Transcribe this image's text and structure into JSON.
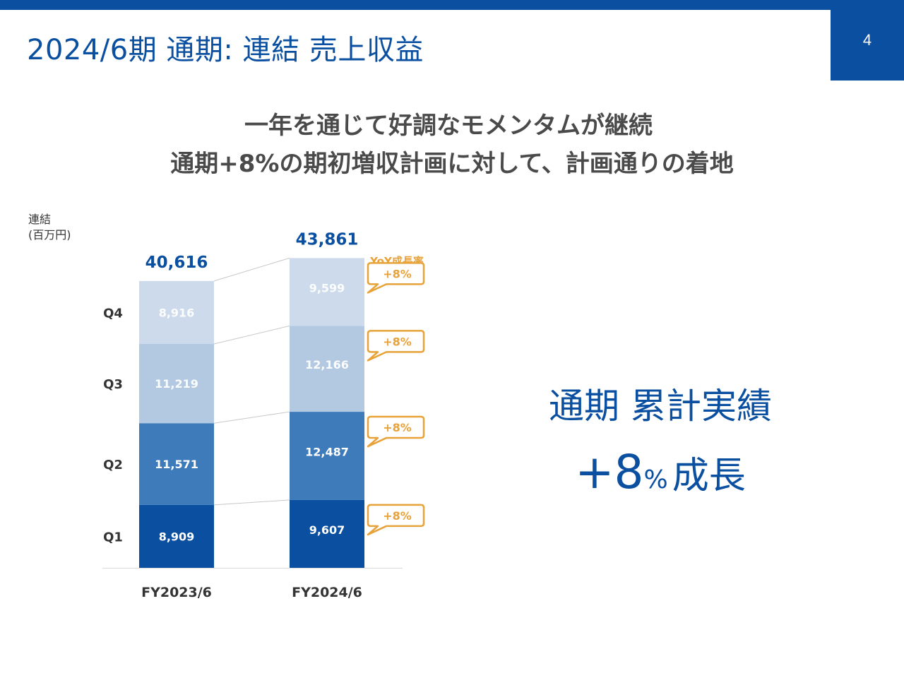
{
  "slide": {
    "title": "2024/6期 通期: 連結 売上収益",
    "page_number": "4",
    "headline_1": "一年を通じて好調なモメンタムが継続",
    "headline_2": "通期+8%の期初増収計画に対して、計画通りの着地",
    "unit_line_1": "連結",
    "unit_line_2": "(百万円)"
  },
  "summary": {
    "line_1": "通期 累計実績",
    "growth_value": "+8",
    "growth_unit": "%",
    "growth_word": "成長"
  },
  "chart_data": {
    "type": "bar",
    "stacked": true,
    "title": "",
    "xlabel": "",
    "ylabel": "",
    "categories": [
      "FY2023/6",
      "FY2024/6"
    ],
    "series": [
      {
        "name": "Q1",
        "values": [
          8909,
          9607
        ],
        "labels": [
          "8,909",
          "9,607"
        ],
        "color": "#0a4fa0"
      },
      {
        "name": "Q2",
        "values": [
          11571,
          12487
        ],
        "labels": [
          "11,571",
          "12,487"
        ],
        "color": "#3e7bbb"
      },
      {
        "name": "Q3",
        "values": [
          11219,
          12166
        ],
        "labels": [
          "11,219",
          "12,166"
        ],
        "color": "#b3c9e2"
      },
      {
        "name": "Q4",
        "values": [
          8916,
          9599
        ],
        "labels": [
          "8,916",
          "9,599"
        ],
        "color": "#ccdaeb"
      }
    ],
    "totals": [
      "40,616",
      "43,861"
    ],
    "yoy_header": "YoY成長率",
    "yoy": [
      "+8%",
      "+8%",
      "+8%",
      "+8%"
    ],
    "colors": {
      "yoy": "#e8a23a",
      "total": "#0a4fa0",
      "axis_label": "#333333"
    }
  }
}
